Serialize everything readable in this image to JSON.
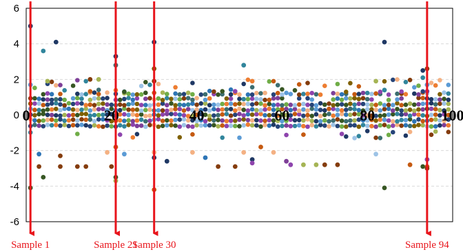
{
  "chart_data": {
    "type": "scatter",
    "title": "",
    "xlabel": "",
    "ylabel": "",
    "xlim": [
      0,
      100
    ],
    "ylim": [
      -6,
      6
    ],
    "x_ticks": [
      0,
      20,
      40,
      60,
      80,
      100
    ],
    "x_tick_labels": [
      "0",
      "20",
      "40",
      "60",
      "80",
      "100"
    ],
    "y_ticks": [
      -6,
      -4,
      -2,
      0,
      2,
      4,
      6
    ],
    "y_tick_labels": [
      "-6",
      "-4",
      "-2",
      "0",
      "2",
      "4",
      "6"
    ],
    "grid": "horizontal dashed",
    "legend": "none",
    "colors": [
      "#1f3864",
      "#2e75b6",
      "#5b9bd5",
      "#ed7d31",
      "#c55a11",
      "#843c0c",
      "#70ad47",
      "#375623",
      "#a5b454",
      "#9dc3e6",
      "#f4b183",
      "#264478",
      "#7f6000",
      "#31859c",
      "#3c6e71",
      "#8e44ad",
      "#7e3f98"
    ],
    "band_levels": [
      -0.6,
      -0.3,
      0.0,
      0.3,
      0.6,
      0.9,
      1.2
    ],
    "highlighted_samples": [
      {
        "x": 1,
        "label": "Sample 1"
      },
      {
        "x": 21,
        "label": "Sample 21"
      },
      {
        "x": 30,
        "label": "Sample 30"
      },
      {
        "x": 94,
        "label": "Sample 94"
      }
    ],
    "outliers": [
      {
        "x": 1,
        "y": 5.0,
        "color": "#1f3864"
      },
      {
        "x": 1,
        "y": 1.7,
        "color": "#5b9bd5"
      },
      {
        "x": 1,
        "y": -4.1,
        "color": "#375623"
      },
      {
        "x": 3,
        "y": -2.9,
        "color": "#843c0c"
      },
      {
        "x": 3,
        "y": -2.2,
        "color": "#2e75b6"
      },
      {
        "x": 4,
        "y": 3.6,
        "color": "#31859c"
      },
      {
        "x": 4,
        "y": -3.5,
        "color": "#375623"
      },
      {
        "x": 5,
        "y": 1.9,
        "color": "#a5b454"
      },
      {
        "x": 7,
        "y": 4.1,
        "color": "#1f3864"
      },
      {
        "x": 8,
        "y": -2.3,
        "color": "#843c0c"
      },
      {
        "x": 8,
        "y": -2.9,
        "color": "#843c0c"
      },
      {
        "x": 12,
        "y": -2.9,
        "color": "#843c0c"
      },
      {
        "x": 14,
        "y": -2.9,
        "color": "#843c0c"
      },
      {
        "x": 15,
        "y": 2.0,
        "color": "#843c0c"
      },
      {
        "x": 17,
        "y": 2.0,
        "color": "#a5b454"
      },
      {
        "x": 19,
        "y": -2.1,
        "color": "#f4b183"
      },
      {
        "x": 20,
        "y": -2.9,
        "color": "#843c0c"
      },
      {
        "x": 21,
        "y": -1.8,
        "color": "#c55a11"
      },
      {
        "x": 21,
        "y": 3.3,
        "color": "#1f3864"
      },
      {
        "x": 21,
        "y": 2.8,
        "color": "#3c6e71"
      },
      {
        "x": 21,
        "y": -3.5,
        "color": "#375623"
      },
      {
        "x": 21,
        "y": -3.7,
        "color": "#a5b454"
      },
      {
        "x": 23,
        "y": 1.3,
        "color": "#375623"
      },
      {
        "x": 23,
        "y": -2.2,
        "color": "#5b9bd5"
      },
      {
        "x": 30,
        "y": 4.1,
        "color": "#1f3864"
      },
      {
        "x": 30,
        "y": 2.6,
        "color": "#7f6000"
      },
      {
        "x": 30,
        "y": 1.9,
        "color": "#843c0c"
      },
      {
        "x": 30,
        "y": -2.1,
        "color": "#f4b183"
      },
      {
        "x": 30,
        "y": -2.4,
        "color": "#1f3864"
      },
      {
        "x": 30,
        "y": -4.2,
        "color": "#c55a11"
      },
      {
        "x": 33,
        "y": -2.6,
        "color": "#1f3864"
      },
      {
        "x": 39,
        "y": -2.1,
        "color": "#f4b183"
      },
      {
        "x": 42,
        "y": -2.4,
        "color": "#2e75b6"
      },
      {
        "x": 45,
        "y": -2.9,
        "color": "#843c0c"
      },
      {
        "x": 49,
        "y": -2.9,
        "color": "#843c0c"
      },
      {
        "x": 51,
        "y": 2.8,
        "color": "#31859c"
      },
      {
        "x": 51,
        "y": -2.1,
        "color": "#f4b183"
      },
      {
        "x": 53,
        "y": -2.5,
        "color": "#1f3864"
      },
      {
        "x": 53,
        "y": -2.7,
        "color": "#8e44ad"
      },
      {
        "x": 53,
        "y": 1.9,
        "color": "#ed7d31"
      },
      {
        "x": 55,
        "y": -1.8,
        "color": "#c55a11"
      },
      {
        "x": 58,
        "y": -2.1,
        "color": "#f4b183"
      },
      {
        "x": 61,
        "y": -2.6,
        "color": "#7e3f98"
      },
      {
        "x": 62,
        "y": -2.8,
        "color": "#8e44ad"
      },
      {
        "x": 65,
        "y": -2.8,
        "color": "#a5b454"
      },
      {
        "x": 68,
        "y": -2.8,
        "color": "#a5b454"
      },
      {
        "x": 70,
        "y": -2.8,
        "color": "#843c0c"
      },
      {
        "x": 73,
        "y": -2.8,
        "color": "#843c0c"
      },
      {
        "x": 82,
        "y": -2.2,
        "color": "#9dc3e6"
      },
      {
        "x": 82,
        "y": 1.9,
        "color": "#a5b454"
      },
      {
        "x": 84,
        "y": 4.1,
        "color": "#1f3864"
      },
      {
        "x": 84,
        "y": 1.4,
        "color": "#31859c"
      },
      {
        "x": 84,
        "y": -4.1,
        "color": "#375623"
      },
      {
        "x": 90,
        "y": -2.8,
        "color": "#c55a11"
      },
      {
        "x": 93,
        "y": 2.5,
        "color": "#1f3864"
      },
      {
        "x": 93,
        "y": 2.1,
        "color": "#31859c"
      },
      {
        "x": 93,
        "y": -2.9,
        "color": "#375623"
      },
      {
        "x": 94,
        "y": 2.6,
        "color": "#843c0c"
      },
      {
        "x": 94,
        "y": 1.7,
        "color": "#5b9bd5"
      },
      {
        "x": 94,
        "y": -2.5,
        "color": "#8e44ad"
      },
      {
        "x": 94,
        "y": -2.9,
        "color": "#c55a11"
      },
      {
        "x": 94,
        "y": -3.0,
        "color": "#843c0c"
      }
    ]
  }
}
